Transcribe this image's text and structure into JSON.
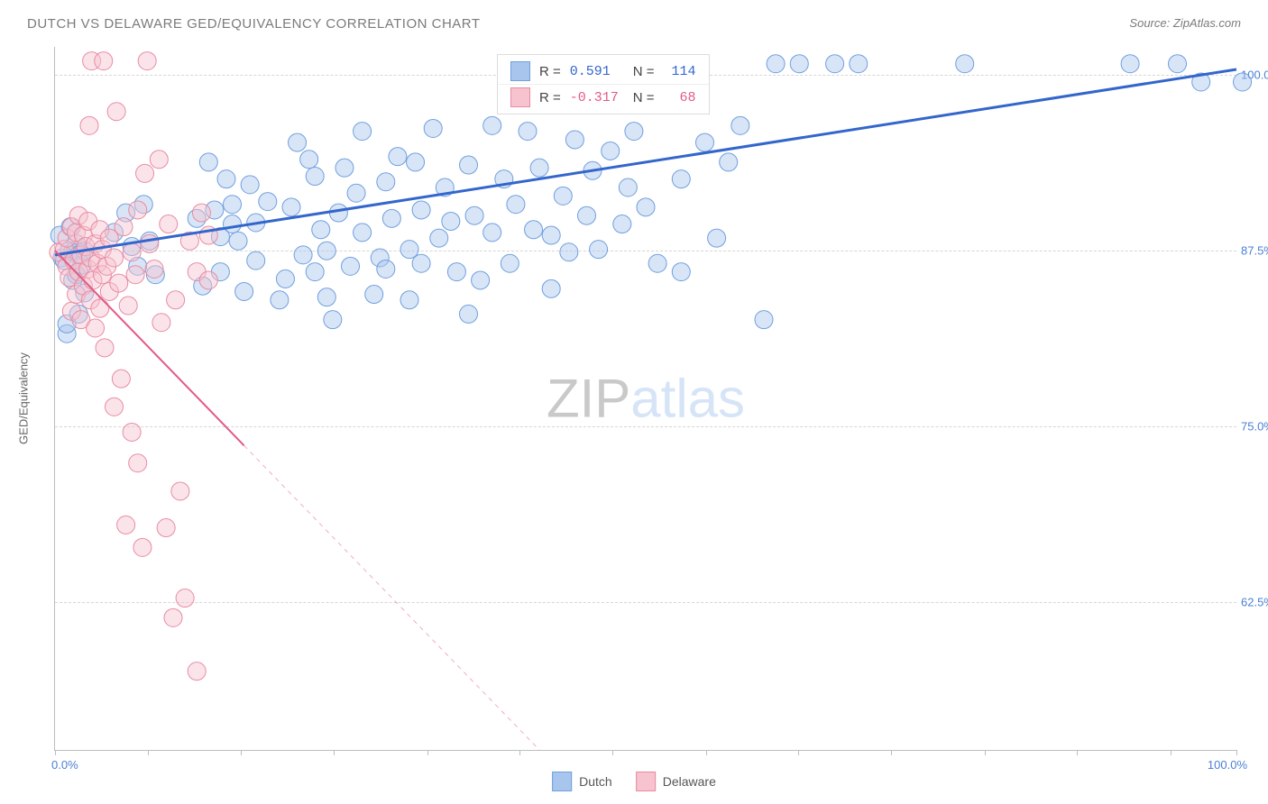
{
  "title": "DUTCH VS DELAWARE GED/EQUIVALENCY CORRELATION CHART",
  "source_prefix": "Source:",
  "source_name": "ZipAtlas.com",
  "watermark_a": "ZIP",
  "watermark_b": "atlas",
  "yaxis_title": "GED/Equivalency",
  "chart": {
    "type": "scatter",
    "xlim": [
      0,
      100
    ],
    "ylim": [
      52,
      102
    ],
    "x_ticks": [
      0,
      7.9,
      15.7,
      23.6,
      31.5,
      39.3,
      47.2,
      55.1,
      62.9,
      70.8,
      78.7,
      86.5,
      94.4,
      100
    ],
    "y_gridlines": [
      62.5,
      75.0,
      87.5,
      100.0
    ],
    "y_tick_labels": [
      "62.5%",
      "75.0%",
      "87.5%",
      "100.0%"
    ],
    "x_first_label": "0.0%",
    "x_last_label": "100.0%",
    "background_color": "#ffffff",
    "grid_color": "#d6d6d6",
    "axis_color": "#bdbdbd",
    "marker_radius": 10,
    "marker_opacity": 0.45
  },
  "series": [
    {
      "name": "Dutch",
      "legend_label": "Dutch",
      "color_fill": "#a8c6ed",
      "color_stroke": "#6f9fde",
      "trend": {
        "x1": 0,
        "y1": 87.2,
        "x2": 100,
        "y2": 100.4,
        "color": "#3366cc",
        "width": 3,
        "dash_after_x": null
      },
      "stats": {
        "R": "0.591",
        "N": "114",
        "value_color": "#3366cc"
      },
      "points": [
        [
          0.4,
          88.6
        ],
        [
          0.6,
          87.0
        ],
        [
          0.8,
          86.8
        ],
        [
          1,
          81.6
        ],
        [
          1,
          82.3
        ],
        [
          1.2,
          87.5
        ],
        [
          1.3,
          89.2
        ],
        [
          1.5,
          87.4
        ],
        [
          1.5,
          85.4
        ],
        [
          1.8,
          88.0
        ],
        [
          1.8,
          85.8
        ],
        [
          2,
          87.2
        ],
        [
          2,
          83.0
        ],
        [
          2.3,
          86.5
        ],
        [
          2.5,
          87.5
        ],
        [
          2.5,
          84.5
        ],
        [
          5,
          88.8
        ],
        [
          6,
          90.2
        ],
        [
          6.5,
          87.8
        ],
        [
          7,
          86.4
        ],
        [
          7.5,
          90.8
        ],
        [
          8,
          88.2
        ],
        [
          8.5,
          85.8
        ],
        [
          12,
          89.8
        ],
        [
          12.5,
          85.0
        ],
        [
          13,
          93.8
        ],
        [
          13.5,
          90.4
        ],
        [
          14,
          88.5
        ],
        [
          14,
          86.0
        ],
        [
          14.5,
          92.6
        ],
        [
          15,
          89.4
        ],
        [
          15,
          90.8
        ],
        [
          15.5,
          88.2
        ],
        [
          16,
          84.6
        ],
        [
          16.5,
          92.2
        ],
        [
          17,
          89.5
        ],
        [
          17,
          86.8
        ],
        [
          18,
          91.0
        ],
        [
          19,
          84.0
        ],
        [
          19.5,
          85.5
        ],
        [
          20,
          90.6
        ],
        [
          20.5,
          95.2
        ],
        [
          21,
          87.2
        ],
        [
          21.5,
          94.0
        ],
        [
          22,
          92.8
        ],
        [
          22,
          86.0
        ],
        [
          22.5,
          89.0
        ],
        [
          23,
          84.2
        ],
        [
          23,
          87.5
        ],
        [
          23.5,
          82.6
        ],
        [
          24,
          90.2
        ],
        [
          24.5,
          93.4
        ],
        [
          25,
          86.4
        ],
        [
          25.5,
          91.6
        ],
        [
          26,
          88.8
        ],
        [
          26,
          96.0
        ],
        [
          27,
          84.4
        ],
        [
          27.5,
          87.0
        ],
        [
          28,
          92.4
        ],
        [
          28,
          86.2
        ],
        [
          28.5,
          89.8
        ],
        [
          29,
          94.2
        ],
        [
          30,
          84.0
        ],
        [
          30,
          87.6
        ],
        [
          30.5,
          93.8
        ],
        [
          31,
          90.4
        ],
        [
          31,
          86.6
        ],
        [
          32,
          96.2
        ],
        [
          32.5,
          88.4
        ],
        [
          33,
          92.0
        ],
        [
          33.5,
          89.6
        ],
        [
          34,
          86.0
        ],
        [
          35,
          93.6
        ],
        [
          35,
          83.0
        ],
        [
          35.5,
          90.0
        ],
        [
          36,
          85.4
        ],
        [
          37,
          96.4
        ],
        [
          37,
          88.8
        ],
        [
          38,
          92.6
        ],
        [
          38.5,
          86.6
        ],
        [
          39,
          90.8
        ],
        [
          40,
          96.0
        ],
        [
          40.5,
          89.0
        ],
        [
          41,
          93.4
        ],
        [
          42,
          88.6
        ],
        [
          42,
          84.8
        ],
        [
          43,
          91.4
        ],
        [
          43.5,
          87.4
        ],
        [
          44,
          95.4
        ],
        [
          45,
          90.0
        ],
        [
          45.5,
          93.2
        ],
        [
          46,
          87.6
        ],
        [
          47,
          94.6
        ],
        [
          48,
          89.4
        ],
        [
          48.5,
          92.0
        ],
        [
          49,
          96.0
        ],
        [
          50,
          90.6
        ],
        [
          51,
          86.6
        ],
        [
          53,
          92.6
        ],
        [
          53,
          86.0
        ],
        [
          55,
          95.2
        ],
        [
          56,
          88.4
        ],
        [
          57,
          93.8
        ],
        [
          58,
          96.4
        ],
        [
          60,
          82.6
        ],
        [
          61,
          100.8
        ],
        [
          63,
          100.8
        ],
        [
          66,
          100.8
        ],
        [
          68,
          100.8
        ],
        [
          77,
          100.8
        ],
        [
          91,
          100.8
        ],
        [
          95,
          100.8
        ],
        [
          97,
          99.5
        ],
        [
          100.5,
          99.5
        ]
      ]
    },
    {
      "name": "Delaware",
      "legend_label": "Delaware",
      "color_fill": "#f6c3cf",
      "color_stroke": "#e88ba3",
      "trend": {
        "x1": 0,
        "y1": 87.5,
        "x2": 41,
        "y2": 52,
        "color": "#e35a83",
        "width": 2,
        "dash_after_x": 16
      },
      "stats": {
        "R": "-0.317",
        "N": "68",
        "value_color": "#e35a83"
      },
      "points": [
        [
          0.3,
          87.4
        ],
        [
          0.8,
          87.6
        ],
        [
          1,
          86.4
        ],
        [
          1,
          88.4
        ],
        [
          1.2,
          85.6
        ],
        [
          1.4,
          89.2
        ],
        [
          1.4,
          83.2
        ],
        [
          1.6,
          86.8
        ],
        [
          1.8,
          88.8
        ],
        [
          1.8,
          84.4
        ],
        [
          2,
          86.0
        ],
        [
          2,
          90.0
        ],
        [
          2.2,
          87.2
        ],
        [
          2.2,
          82.6
        ],
        [
          2.4,
          88.6
        ],
        [
          2.4,
          85.0
        ],
        [
          2.6,
          87.8
        ],
        [
          2.8,
          86.2
        ],
        [
          2.8,
          89.6
        ],
        [
          3,
          84.0
        ],
        [
          3,
          87.0
        ],
        [
          3.2,
          85.4
        ],
        [
          3.4,
          88.0
        ],
        [
          3.4,
          82.0
        ],
        [
          3.6,
          86.6
        ],
        [
          3.8,
          89.0
        ],
        [
          3.8,
          83.4
        ],
        [
          4,
          85.8
        ],
        [
          4,
          87.6
        ],
        [
          4.2,
          80.6
        ],
        [
          4.4,
          86.4
        ],
        [
          4.6,
          88.4
        ],
        [
          4.6,
          84.6
        ],
        [
          5,
          87.0
        ],
        [
          5,
          76.4
        ],
        [
          5.4,
          85.2
        ],
        [
          5.6,
          78.4
        ],
        [
          5.8,
          89.2
        ],
        [
          6,
          68.0
        ],
        [
          6.2,
          83.6
        ],
        [
          6.5,
          87.4
        ],
        [
          6.5,
          74.6
        ],
        [
          6.8,
          85.8
        ],
        [
          7,
          72.4
        ],
        [
          7,
          90.4
        ],
        [
          7.4,
          66.4
        ],
        [
          7.6,
          93.0
        ],
        [
          8,
          88.0
        ],
        [
          8.4,
          86.2
        ],
        [
          8.8,
          94.0
        ],
        [
          9,
          82.4
        ],
        [
          9.4,
          67.8
        ],
        [
          9.6,
          89.4
        ],
        [
          10,
          61.4
        ],
        [
          10.2,
          84.0
        ],
        [
          10.6,
          70.4
        ],
        [
          11,
          62.8
        ],
        [
          11.4,
          88.2
        ],
        [
          12,
          57.6
        ],
        [
          12,
          86.0
        ],
        [
          12.4,
          90.2
        ],
        [
          13,
          85.4
        ],
        [
          13,
          88.6
        ],
        [
          3.1,
          101.0
        ],
        [
          4.1,
          101.0
        ],
        [
          7.8,
          101.0
        ],
        [
          2.9,
          96.4
        ],
        [
          5.2,
          97.4
        ]
      ]
    }
  ],
  "legend": {
    "items": [
      {
        "label": "Dutch",
        "fill": "#a8c6ed",
        "stroke": "#6f9fde"
      },
      {
        "label": "Delaware",
        "fill": "#f6c3cf",
        "stroke": "#e88ba3"
      }
    ]
  }
}
